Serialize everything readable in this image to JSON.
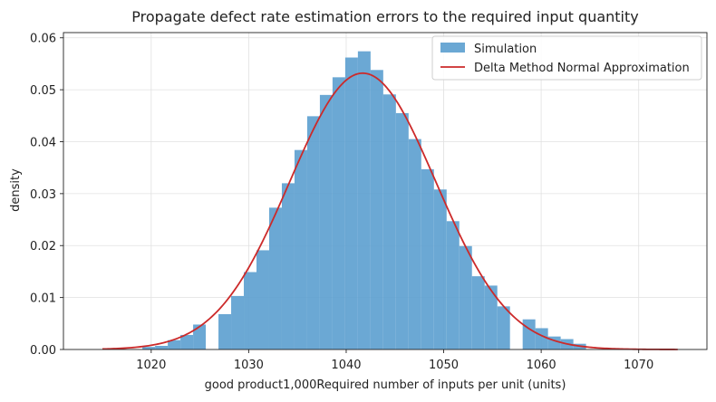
{
  "chart_data": {
    "type": "bar",
    "title": "Propagate defect rate estimation errors to the required input quantity",
    "xlabel": "good product1,000Required number of inputs per unit (units)",
    "ylabel": "density",
    "xlim": [
      1011,
      1077
    ],
    "ylim": [
      0,
      0.061
    ],
    "grid": true,
    "legend_position": "top-right",
    "xticks": [
      1020,
      1030,
      1040,
      1050,
      1060,
      1070
    ],
    "yticks": [
      0.0,
      0.01,
      0.02,
      0.03,
      0.04,
      0.05,
      0.06
    ],
    "xtick_labels": [
      "1020",
      "1030",
      "1040",
      "1050",
      "1060",
      "1070"
    ],
    "ytick_labels": [
      "0.00",
      "0.01",
      "0.02",
      "0.03",
      "0.04",
      "0.05",
      "0.06"
    ],
    "bin_width": 1.3,
    "histogram": {
      "name": "Simulation",
      "color": "#5b9ecf",
      "bins": [
        {
          "start": 1019.1,
          "value": 0.0005
        },
        {
          "start": 1020.4,
          "value": 0.0007
        },
        {
          "start": 1021.7,
          "value": 0.0018
        },
        {
          "start": 1023.0,
          "value": 0.0028
        },
        {
          "start": 1024.3,
          "value": 0.0048
        },
        {
          "start": 1026.9,
          "value": 0.0068
        },
        {
          "start": 1028.2,
          "value": 0.0103
        },
        {
          "start": 1029.5,
          "value": 0.0149
        },
        {
          "start": 1030.8,
          "value": 0.0191
        },
        {
          "start": 1032.1,
          "value": 0.0273
        },
        {
          "start": 1033.4,
          "value": 0.032
        },
        {
          "start": 1034.7,
          "value": 0.0384
        },
        {
          "start": 1036.0,
          "value": 0.0449
        },
        {
          "start": 1037.3,
          "value": 0.049
        },
        {
          "start": 1038.6,
          "value": 0.0524
        },
        {
          "start": 1039.9,
          "value": 0.0562
        },
        {
          "start": 1041.2,
          "value": 0.0574
        },
        {
          "start": 1042.5,
          "value": 0.0538
        },
        {
          "start": 1043.8,
          "value": 0.0491
        },
        {
          "start": 1045.1,
          "value": 0.0455
        },
        {
          "start": 1046.4,
          "value": 0.0405
        },
        {
          "start": 1047.7,
          "value": 0.0347
        },
        {
          "start": 1049.0,
          "value": 0.0308
        },
        {
          "start": 1050.3,
          "value": 0.0247
        },
        {
          "start": 1051.6,
          "value": 0.0199
        },
        {
          "start": 1052.9,
          "value": 0.0141
        },
        {
          "start": 1054.2,
          "value": 0.0123
        },
        {
          "start": 1055.5,
          "value": 0.0083
        },
        {
          "start": 1058.1,
          "value": 0.0058
        },
        {
          "start": 1059.4,
          "value": 0.0041
        },
        {
          "start": 1060.7,
          "value": 0.0025
        },
        {
          "start": 1062.0,
          "value": 0.002
        },
        {
          "start": 1063.3,
          "value": 0.0011
        }
      ]
    },
    "curve": {
      "name": "Delta Method Normal Approximation",
      "color": "#cc2a2a",
      "mean": 1041.7,
      "std": 7.5,
      "x_range": [
        1015,
        1074
      ]
    }
  }
}
